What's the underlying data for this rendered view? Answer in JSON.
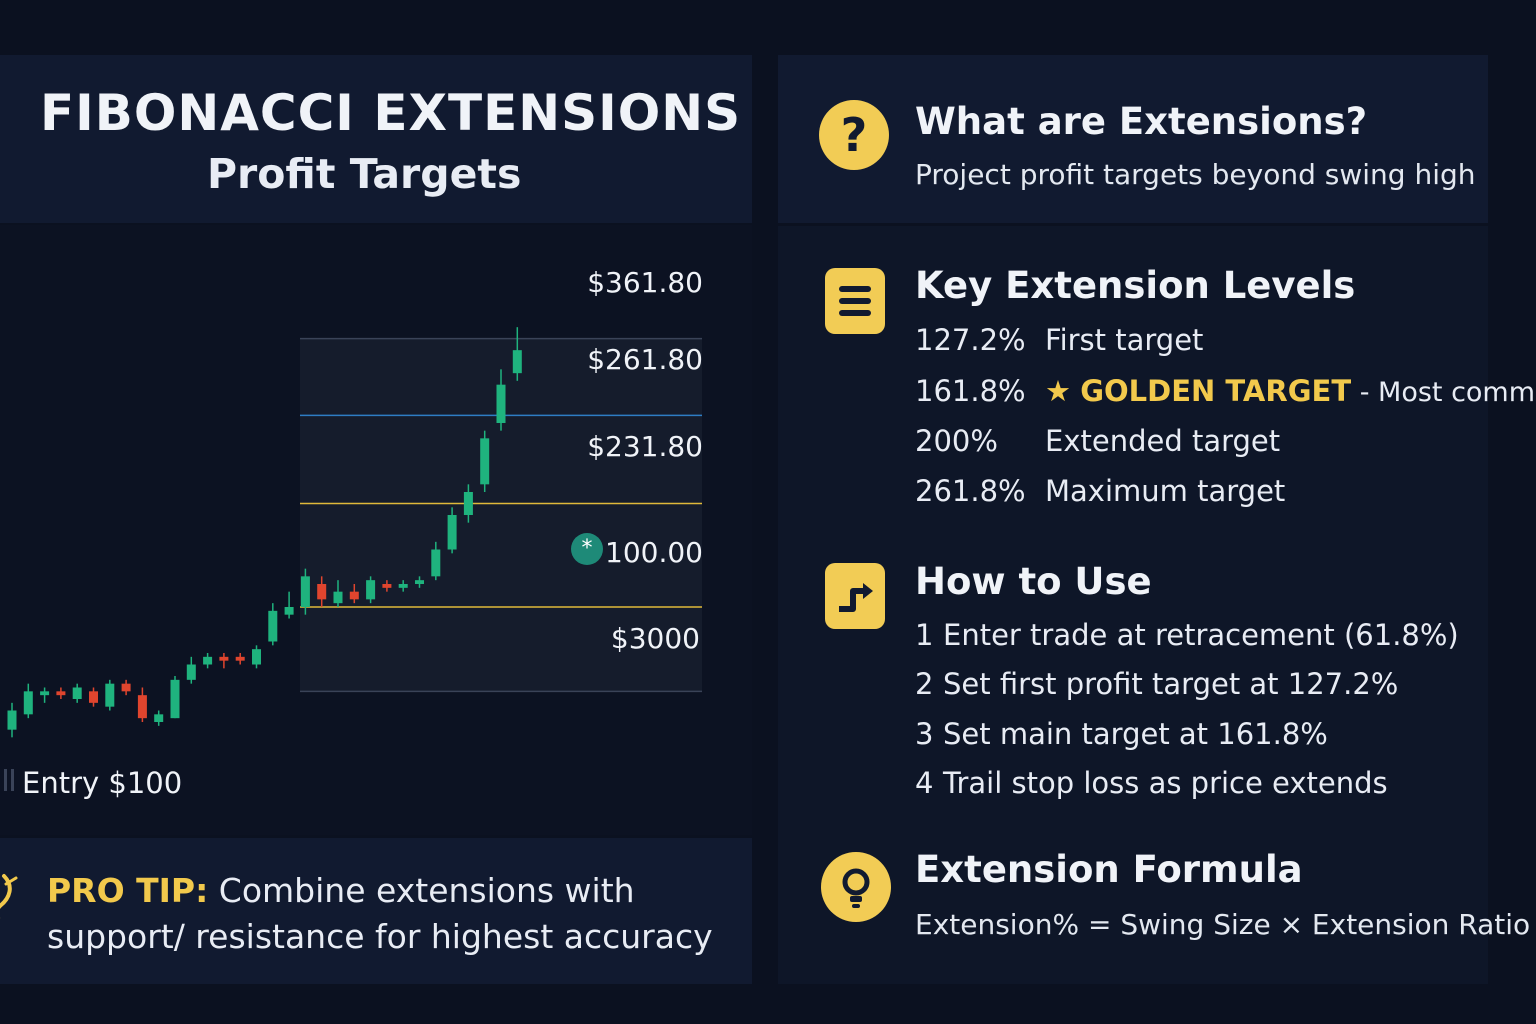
{
  "header": {
    "title": "FIBONACCI EXTENSIONS",
    "subtitle": "Profit Targets"
  },
  "chart": {
    "price_labels": [
      "$361.80",
      "$261.80",
      "$231.80",
      "100.00",
      "$3000"
    ],
    "entry_label": "Entry $100",
    "pivot_icon": "asterisk-icon",
    "colors": {
      "bull": "#1fb37e",
      "bear": "#e0452e",
      "level_blue": "#2e7dc4",
      "level_gold": "#e0b93a",
      "level_gray": "#3a4358"
    },
    "candles": [
      {
        "o": 24,
        "c": 29,
        "h": 31,
        "l": 22
      },
      {
        "o": 28,
        "c": 34,
        "h": 36,
        "l": 27
      },
      {
        "o": 33,
        "c": 34,
        "h": 35,
        "l": 31
      },
      {
        "o": 34,
        "c": 33,
        "h": 35,
        "l": 32
      },
      {
        "o": 32,
        "c": 35,
        "h": 36,
        "l": 31
      },
      {
        "o": 34,
        "c": 31,
        "h": 35,
        "l": 30
      },
      {
        "o": 30,
        "c": 36,
        "h": 37,
        "l": 29
      },
      {
        "o": 36,
        "c": 34,
        "h": 37,
        "l": 33
      },
      {
        "o": 33,
        "c": 27,
        "h": 35,
        "l": 26
      },
      {
        "o": 26,
        "c": 28,
        "h": 29,
        "l": 25
      },
      {
        "o": 27,
        "c": 37,
        "h": 38,
        "l": 27
      },
      {
        "o": 37,
        "c": 41,
        "h": 43,
        "l": 36
      },
      {
        "o": 41,
        "c": 43,
        "h": 44,
        "l": 40
      },
      {
        "o": 43,
        "c": 42,
        "h": 44,
        "l": 40
      },
      {
        "o": 43,
        "c": 42,
        "h": 44,
        "l": 41
      },
      {
        "o": 41,
        "c": 45,
        "h": 46,
        "l": 40
      },
      {
        "o": 47,
        "c": 55,
        "h": 57,
        "l": 46
      },
      {
        "o": 54,
        "c": 56,
        "h": 60,
        "l": 53
      },
      {
        "o": 56,
        "c": 64,
        "h": 66,
        "l": 54
      },
      {
        "o": 62,
        "c": 58,
        "h": 64,
        "l": 56
      },
      {
        "o": 57,
        "c": 60,
        "h": 63,
        "l": 56
      },
      {
        "o": 60,
        "c": 58,
        "h": 62,
        "l": 57
      },
      {
        "o": 58,
        "c": 63,
        "h": 64,
        "l": 57
      },
      {
        "o": 62,
        "c": 61,
        "h": 63,
        "l": 60
      },
      {
        "o": 61,
        "c": 62,
        "h": 63,
        "l": 60
      },
      {
        "o": 62,
        "c": 63,
        "h": 64,
        "l": 61
      },
      {
        "o": 64,
        "c": 71,
        "h": 73,
        "l": 63
      },
      {
        "o": 71,
        "c": 80,
        "h": 82,
        "l": 70
      },
      {
        "o": 80,
        "c": 86,
        "h": 88,
        "l": 78
      },
      {
        "o": 88,
        "c": 100,
        "h": 102,
        "l": 86
      },
      {
        "o": 104,
        "c": 114,
        "h": 118,
        "l": 102
      },
      {
        "o": 117,
        "c": 123,
        "h": 129,
        "l": 115
      }
    ],
    "levels": [
      {
        "value": 126,
        "color": "#3a4358"
      },
      {
        "value": 106,
        "color": "#2e7dc4"
      },
      {
        "value": 83,
        "color": "#e0b93a"
      },
      {
        "value": 56,
        "color": "#e0b93a"
      },
      {
        "value": 34,
        "color": "#3a4358"
      }
    ],
    "shade": {
      "from": 34,
      "to": 126
    }
  },
  "tip": {
    "icon": "pen-icon",
    "label": "PRO TIP:",
    "text": " Combine extensions with support/ resistance for highest accuracy"
  },
  "sections": {
    "what": {
      "icon": "question-icon",
      "title": "What are Extensions?",
      "text": "Project profit targets beyond swing high"
    },
    "levels": {
      "icon": "list-icon",
      "title": "Key Extension Levels",
      "items": [
        {
          "pct": "127.2%",
          "desc": "First target"
        },
        {
          "pct": "161.8%",
          "star": "★",
          "gold": "GOLDEN TARGET",
          "desc": " - Most common"
        },
        {
          "pct": "200%",
          "desc": "Extended target"
        },
        {
          "pct": "261.8%",
          "desc": "Maximum target"
        }
      ]
    },
    "howto": {
      "icon": "turn-arrow-icon",
      "title": "How to Use",
      "steps": [
        {
          "num": "1",
          "text": "Enter trade at retracement (61.8%)"
        },
        {
          "num": "2",
          "text": "Set first profit target at 127.2%"
        },
        {
          "num": "3",
          "text": "Set main target at 161.8%"
        },
        {
          "num": "4",
          "text": "Trail stop loss as price extends"
        }
      ]
    },
    "formula": {
      "icon": "lightbulb-icon",
      "title": "Extension Formula",
      "text": "Extension% = Swing Size × Extension Ratio"
    }
  }
}
